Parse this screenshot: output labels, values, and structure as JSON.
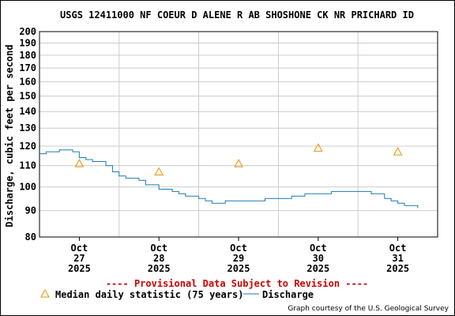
{
  "colors": {
    "discharge": "#1a7ab8",
    "median": "#e59400",
    "grid": "#cccccc",
    "provisional": "#cc0000"
  },
  "chart_data": {
    "type": "line",
    "title": "USGS 12411000 NF COEUR D ALENE R AB SHOSHONE CK NR PRICHARD ID",
    "ylabel": "Discharge, cubic feet per second",
    "xlabel": "",
    "ylim": [
      80,
      200
    ],
    "yscale": "log",
    "xlim": [
      "2025-10-26T12:00",
      "2025-10-31T12:00"
    ],
    "yticks": [
      80,
      90,
      100,
      110,
      120,
      130,
      140,
      150,
      160,
      170,
      180,
      190,
      200
    ],
    "xticks": [
      {
        "x": "2025-10-27T00:00",
        "lines": [
          "Oct",
          "27",
          "2025"
        ]
      },
      {
        "x": "2025-10-28T00:00",
        "lines": [
          "Oct",
          "28",
          "2025"
        ]
      },
      {
        "x": "2025-10-29T00:00",
        "lines": [
          "Oct",
          "29",
          "2025"
        ]
      },
      {
        "x": "2025-10-30T00:00",
        "lines": [
          "Oct",
          "30",
          "2025"
        ]
      },
      {
        "x": "2025-10-31T00:00",
        "lines": [
          "Oct",
          "31",
          "2025"
        ]
      }
    ],
    "grid": true,
    "series": [
      {
        "name": "Discharge",
        "x": [
          "2025-10-26T12:00",
          "2025-10-26T14:00",
          "2025-10-26T16:00",
          "2025-10-26T18:00",
          "2025-10-26T20:00",
          "2025-10-26T22:00",
          "2025-10-27T00:00",
          "2025-10-27T02:00",
          "2025-10-27T04:00",
          "2025-10-27T06:00",
          "2025-10-27T08:00",
          "2025-10-27T10:00",
          "2025-10-27T12:00",
          "2025-10-27T14:00",
          "2025-10-27T16:00",
          "2025-10-27T18:00",
          "2025-10-27T20:00",
          "2025-10-27T22:00",
          "2025-10-28T00:00",
          "2025-10-28T02:00",
          "2025-10-28T04:00",
          "2025-10-28T06:00",
          "2025-10-28T08:00",
          "2025-10-28T10:00",
          "2025-10-28T12:00",
          "2025-10-28T14:00",
          "2025-10-28T16:00",
          "2025-10-28T18:00",
          "2025-10-28T20:00",
          "2025-10-28T22:00",
          "2025-10-29T00:00",
          "2025-10-29T02:00",
          "2025-10-29T04:00",
          "2025-10-29T06:00",
          "2025-10-29T08:00",
          "2025-10-29T10:00",
          "2025-10-29T12:00",
          "2025-10-29T14:00",
          "2025-10-29T16:00",
          "2025-10-29T18:00",
          "2025-10-29T20:00",
          "2025-10-29T22:00",
          "2025-10-30T00:00",
          "2025-10-30T02:00",
          "2025-10-30T04:00",
          "2025-10-30T06:00",
          "2025-10-30T08:00",
          "2025-10-30T10:00",
          "2025-10-30T12:00",
          "2025-10-30T14:00",
          "2025-10-30T16:00",
          "2025-10-30T18:00",
          "2025-10-30T20:00",
          "2025-10-30T22:00",
          "2025-10-31T00:00",
          "2025-10-31T02:00",
          "2025-10-31T04:00",
          "2025-10-31T06:00"
        ],
        "values": [
          116,
          117,
          117,
          118,
          118,
          117,
          114,
          113,
          112,
          112,
          110,
          107,
          105,
          104,
          104,
          103,
          101,
          101,
          99,
          99,
          98,
          97,
          96,
          96,
          95,
          94,
          93,
          93,
          94,
          94,
          94,
          94,
          94,
          94,
          95,
          95,
          95,
          95,
          96,
          96,
          97,
          97,
          97,
          97,
          98,
          98,
          98,
          98,
          98,
          98,
          97,
          97,
          95,
          94,
          93,
          92,
          92,
          91
        ],
        "color": "#1a7ab8"
      },
      {
        "name": "Median daily statistic (75 years)",
        "marker": "triangle",
        "x": [
          "2025-10-27T00:00",
          "2025-10-28T00:00",
          "2025-10-29T00:00",
          "2025-10-30T00:00",
          "2025-10-31T00:00"
        ],
        "values": [
          111,
          107,
          111,
          119,
          117
        ],
        "color": "#e59400"
      }
    ]
  },
  "provisional_note": "---- Provisional Data Subject to Revision ----",
  "legend": {
    "median_label": "Median daily statistic (75 years)",
    "discharge_label": "Discharge"
  },
  "courtesy": "Graph courtesy of the U.S. Geological Survey"
}
